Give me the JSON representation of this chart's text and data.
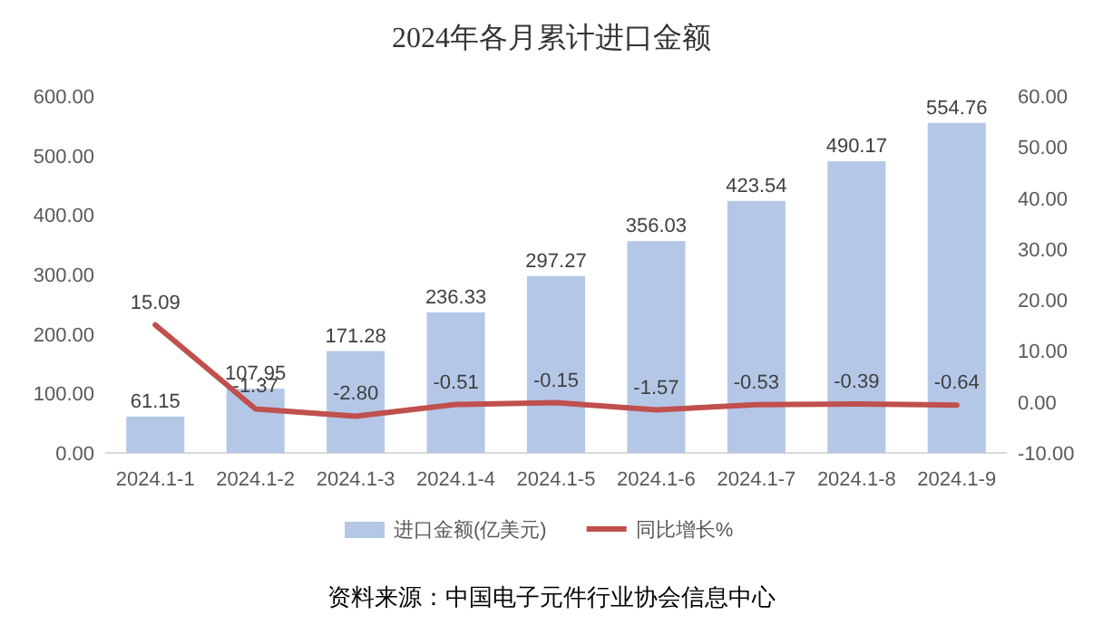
{
  "chart_data": {
    "type": "bar",
    "title": "2024年各月累计进口金额",
    "categories": [
      "2024.1-1",
      "2024.1-2",
      "2024.1-3",
      "2024.1-4",
      "2024.1-5",
      "2024.1-6",
      "2024.1-7",
      "2024.1-8",
      "2024.1-9"
    ],
    "series": [
      {
        "name": "进口金额(亿美元)",
        "color": "#b4c7e7",
        "values": [
          61.15,
          107.95,
          171.28,
          236.33,
          297.27,
          356.03,
          423.54,
          490.17,
          554.76
        ]
      },
      {
        "name": "同比增长%",
        "type": "line",
        "axis": "y2",
        "color": "#c0504d",
        "values": [
          15.09,
          -1.37,
          -2.8,
          -0.51,
          -0.15,
          -1.57,
          -0.53,
          -0.39,
          -0.64
        ],
        "value_labels": [
          "15.09",
          "-1.37",
          "-2.80",
          "-0.51",
          "-0.15",
          "-1.57",
          "-0.53",
          "-0.39",
          "-0.64"
        ]
      }
    ],
    "ylim": [
      0,
      600
    ],
    "yticks": [
      {
        "value": 0,
        "label": "0.00"
      },
      {
        "value": 100,
        "label": "100.00"
      },
      {
        "value": 200,
        "label": "200.00"
      },
      {
        "value": 300,
        "label": "300.00"
      },
      {
        "value": 400,
        "label": "400.00"
      },
      {
        "value": 500,
        "label": "500.00"
      },
      {
        "value": 600,
        "label": "600.00"
      }
    ],
    "y2lim": [
      -10,
      60
    ],
    "y2ticks": [
      {
        "value": -10,
        "label": "-10.00"
      },
      {
        "value": 0,
        "label": "0.00"
      },
      {
        "value": 10,
        "label": "10.00"
      },
      {
        "value": 20,
        "label": "20.00"
      },
      {
        "value": 30,
        "label": "30.00"
      },
      {
        "value": 40,
        "label": "40.00"
      },
      {
        "value": 50,
        "label": "50.00"
      },
      {
        "value": 60,
        "label": "60.00"
      }
    ],
    "data_labels": true,
    "legend": "bottom",
    "grid": false,
    "annotations": [
      "资料来源：中国电子元件行业协会信息中心"
    ]
  }
}
